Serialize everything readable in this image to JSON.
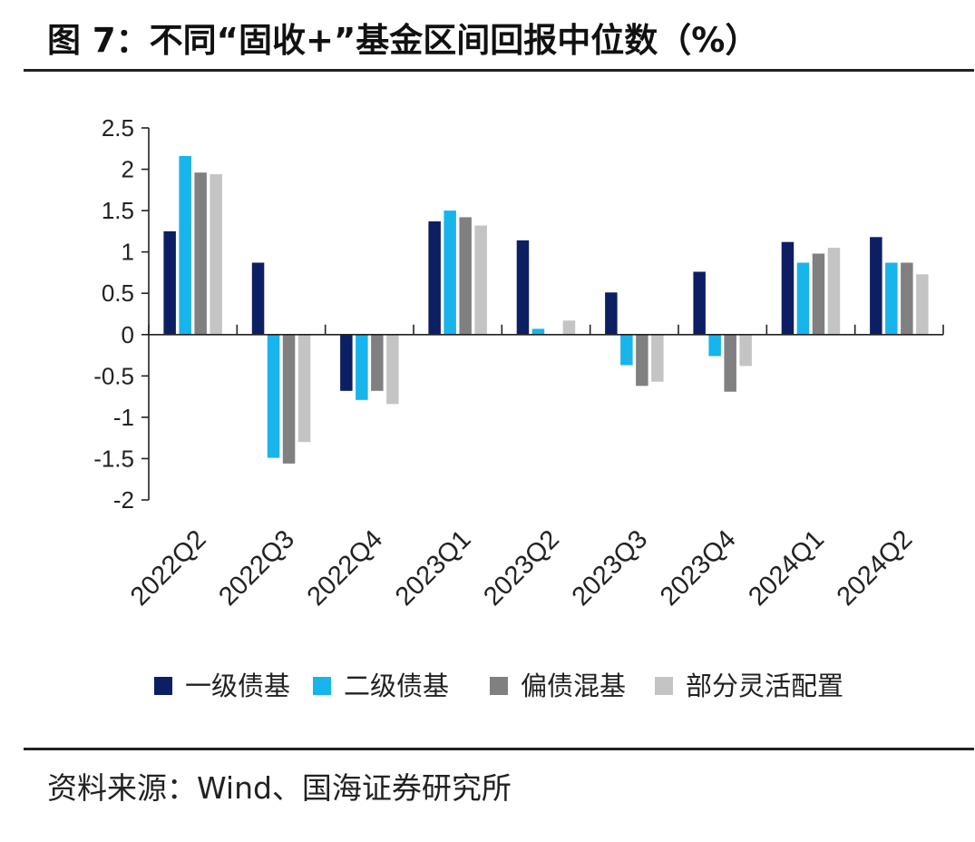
{
  "title": "图 7：不同“固收+”基金区间回报中位数（%）",
  "source": "资料来源：Wind、国海证券研究所",
  "chart_data": {
    "type": "bar",
    "title": "图 7：不同“固收+”基金区间回报中位数（%）",
    "xlabel": "",
    "ylabel": "",
    "ylim": [
      -2,
      2.5
    ],
    "yticks": [
      "2.5",
      "2",
      "1.5",
      "1",
      "0.5",
      "0",
      "-0.5",
      "-1",
      "-1.5",
      "-2"
    ],
    "grid": false,
    "legend": "bottom",
    "categories": [
      "2022Q2",
      "2022Q3",
      "2022Q4",
      "2023Q1",
      "2023Q2",
      "2023Q3",
      "2023Q4",
      "2024Q1",
      "2024Q2"
    ],
    "series": [
      {
        "name": "一级债基",
        "color": "#0d1f63",
        "values": [
          1.25,
          0.87,
          -0.68,
          1.37,
          1.14,
          0.51,
          0.76,
          1.12,
          1.18
        ]
      },
      {
        "name": "二级债基",
        "color": "#18b4ec",
        "values": [
          2.16,
          -1.49,
          -0.79,
          1.5,
          0.07,
          -0.37,
          -0.26,
          0.87,
          0.87
        ]
      },
      {
        "name": "偏债混基",
        "color": "#808080",
        "values": [
          1.96,
          -1.56,
          -0.68,
          1.42,
          0.0,
          -0.62,
          -0.69,
          0.98,
          0.87
        ]
      },
      {
        "name": "部分灵活配置",
        "color": "#c4c4c4",
        "values": [
          1.94,
          -1.3,
          -0.84,
          1.32,
          0.17,
          -0.57,
          -0.38,
          1.05,
          0.73
        ]
      }
    ]
  }
}
